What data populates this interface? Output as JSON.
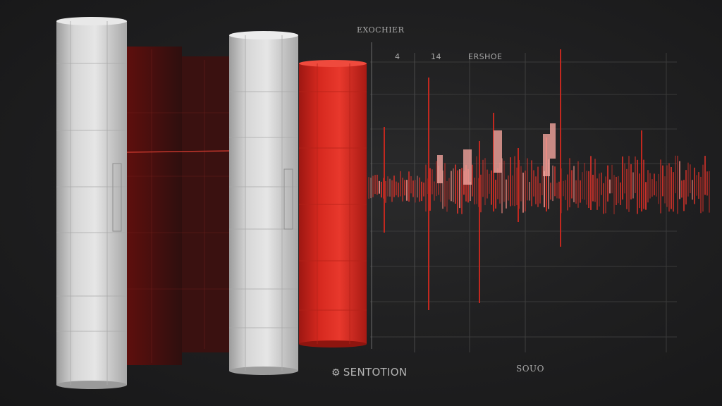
{
  "labels": {
    "top_caption": "EXOCHIER",
    "marker_1": "4",
    "marker_2": "14",
    "marker_3": "ERSHOE",
    "bottom_caption": "SENTOTION",
    "bottom_right": "SOUO",
    "bottom_icon": "gear-icon"
  },
  "colors": {
    "background": "#1c1c1d",
    "cylinder_white": "#d8d8d8",
    "cylinder_red": "#d3261f",
    "wave_red": "#e2332a",
    "grid_line": "#3a3a3a"
  }
}
